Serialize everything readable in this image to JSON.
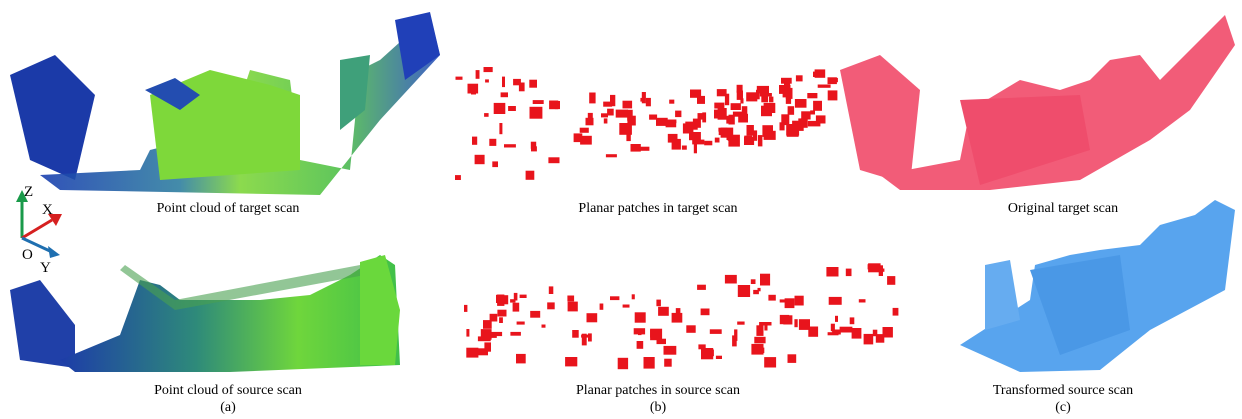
{
  "panels": [
    {
      "label": "(a)",
      "top_caption": "Point cloud of target scan",
      "bottom_caption": "Point cloud of source scan"
    },
    {
      "label": "(b)",
      "top_caption": "Planar patches in target scan",
      "bottom_caption": "Planar patches in source scan"
    },
    {
      "label": "(c)",
      "top_caption": "Original target scan",
      "bottom_caption": "Transformed source scan"
    }
  ],
  "axes": {
    "z": "Z",
    "x": "X",
    "origin": "O",
    "y": "Y"
  }
}
